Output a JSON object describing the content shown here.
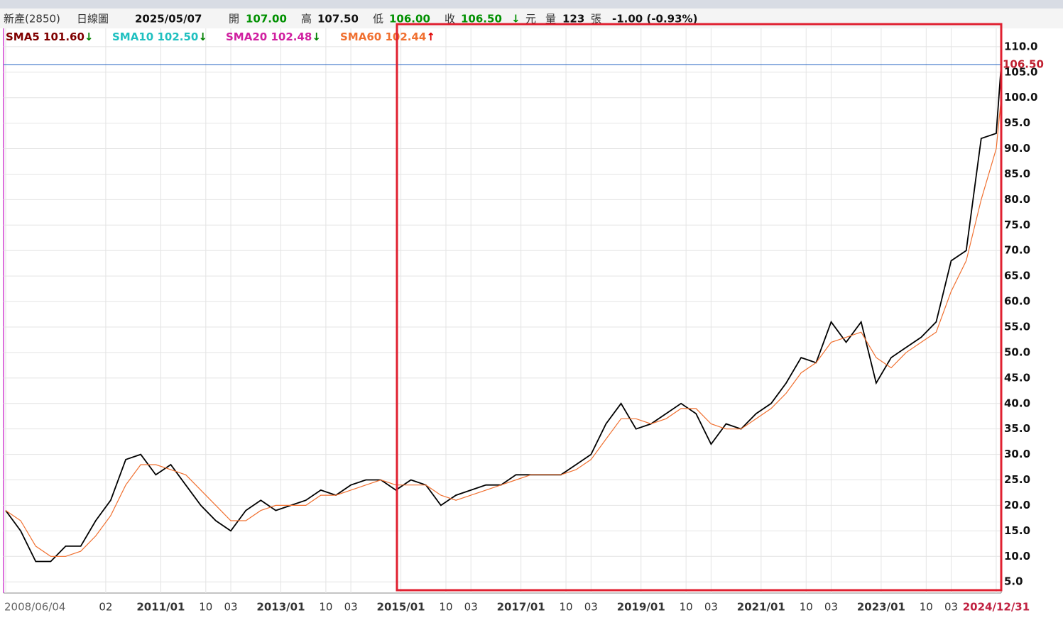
{
  "header": {
    "stock": "新產(2850)",
    "period": "日線圖",
    "date": "2025/05/07",
    "open_label": "開",
    "open": "107.00",
    "high_label": "高",
    "high": "107.50",
    "low_label": "低",
    "low": "106.00",
    "close_label": "收",
    "close": "106.50",
    "unit": "元",
    "volume_label": "量",
    "volume": "123",
    "volume_unit": "張",
    "change": "-1.00 (-0.93%)"
  },
  "indicators": [
    {
      "name": "SMA5",
      "value": "101.60",
      "color": "#800000",
      "arrow": "↓",
      "arrow_color": "#008000"
    },
    {
      "name": "SMA10",
      "value": "102.50",
      "color": "#20c0c0",
      "arrow": "↓",
      "arrow_color": "#008000"
    },
    {
      "name": "SMA20",
      "value": "102.48",
      "color": "#d020a0",
      "arrow": "↓",
      "arrow_color": "#008000"
    },
    {
      "name": "SMA60",
      "value": "102.44",
      "color": "#f07030",
      "arrow": "↑",
      "arrow_color": "#e00000"
    }
  ],
  "chart_data": {
    "type": "line",
    "x": [
      "2008/06",
      "2008/09",
      "2008/12",
      "2009/03",
      "2009/06",
      "2009/09",
      "2009/12",
      "2010/03",
      "2010/06",
      "2010/09",
      "2010/12",
      "2011/03",
      "2011/06",
      "2011/09",
      "2011/12",
      "2012/03",
      "2012/06",
      "2012/09",
      "2012/12",
      "2013/03",
      "2013/06",
      "2013/09",
      "2013/12",
      "2014/03",
      "2014/06",
      "2014/09",
      "2014/12",
      "2015/03",
      "2015/06",
      "2015/09",
      "2015/12",
      "2016/03",
      "2016/06",
      "2016/09",
      "2016/12",
      "2017/03",
      "2017/06",
      "2017/09",
      "2017/12",
      "2018/03",
      "2018/06",
      "2018/09",
      "2018/12",
      "2019/03",
      "2019/06",
      "2019/09",
      "2019/12",
      "2020/03",
      "2020/06",
      "2020/09",
      "2020/12",
      "2021/03",
      "2021/06",
      "2021/09",
      "2021/12",
      "2022/03",
      "2022/06",
      "2022/09",
      "2022/12",
      "2023/03",
      "2023/06",
      "2023/09",
      "2023/12",
      "2024/03",
      "2024/06",
      "2024/09",
      "2024/12",
      "2025/01"
    ],
    "series": [
      {
        "color": "#000000",
        "values": [
          19,
          15,
          9,
          9,
          12,
          12,
          17,
          21,
          29,
          30,
          26,
          28,
          24,
          20,
          17,
          15,
          19,
          21,
          19,
          20,
          21,
          23,
          22,
          24,
          25,
          25,
          23,
          25,
          24,
          20,
          22,
          23,
          24,
          24,
          26,
          26,
          26,
          26,
          28,
          30,
          36,
          40,
          35,
          36,
          38,
          40,
          38,
          32,
          36,
          35,
          38,
          40,
          44,
          49,
          48,
          56,
          52,
          56,
          44,
          49,
          51,
          53,
          56,
          68,
          70,
          92,
          93,
          106.5
        ]
      },
      {
        "color": "#f07030",
        "values": [
          19,
          17,
          12,
          10,
          10,
          11,
          14,
          18,
          24,
          28,
          28,
          27,
          26,
          23,
          20,
          17,
          17,
          19,
          20,
          20,
          20,
          22,
          22,
          23,
          24,
          25,
          24,
          24,
          24,
          22,
          21,
          22,
          23,
          24,
          25,
          26,
          26,
          26,
          27,
          29,
          33,
          37,
          37,
          36,
          37,
          39,
          39,
          36,
          35,
          35,
          37,
          39,
          42,
          46,
          48,
          52,
          53,
          54,
          49,
          47,
          50,
          52,
          54,
          62,
          68,
          80,
          90,
          100
        ]
      }
    ],
    "xlim": [
      "2008/06",
      "2025/01"
    ],
    "xticks": [
      {
        "value": "2008/06",
        "label": "2008/06/04"
      },
      {
        "value": "2010/02",
        "label": "02"
      },
      {
        "value": "2011/01",
        "label": "2011/01"
      },
      {
        "value": "2011/10",
        "label": "10"
      },
      {
        "value": "2012/03",
        "label": "03"
      },
      {
        "value": "2013/01",
        "label": "2013/01"
      },
      {
        "value": "2013/10",
        "label": "10"
      },
      {
        "value": "2014/03",
        "label": "03"
      },
      {
        "value": "2015/01",
        "label": "2015/01"
      },
      {
        "value": "2015/10",
        "label": "10"
      },
      {
        "value": "2016/03",
        "label": "03"
      },
      {
        "value": "2017/01",
        "label": "2017/01"
      },
      {
        "value": "2017/10",
        "label": "10"
      },
      {
        "value": "2018/03",
        "label": "03"
      },
      {
        "value": "2019/01",
        "label": "2019/01"
      },
      {
        "value": "2019/10",
        "label": "10"
      },
      {
        "value": "2020/03",
        "label": "03"
      },
      {
        "value": "2021/01",
        "label": "2021/01"
      },
      {
        "value": "2021/10",
        "label": "10"
      },
      {
        "value": "2022/03",
        "label": "03"
      },
      {
        "value": "2023/01",
        "label": "2023/01"
      },
      {
        "value": "2023/10",
        "label": "10"
      },
      {
        "value": "2024/03",
        "label": "03"
      },
      {
        "value": "2024/12",
        "label": "2024/12/31"
      }
    ],
    "ylim": [
      2.8,
      113.6
    ],
    "yticks": [
      {
        "value": 5,
        "label": "5.0"
      },
      {
        "value": 10,
        "label": "10.0"
      },
      {
        "value": 15,
        "label": "15.0"
      },
      {
        "value": 20,
        "label": "20.0"
      },
      {
        "value": 25,
        "label": "25.0"
      },
      {
        "value": 30,
        "label": "30.0"
      },
      {
        "value": 35,
        "label": "35.0"
      },
      {
        "value": 40,
        "label": "40.0"
      },
      {
        "value": 45,
        "label": "45.0"
      },
      {
        "value": 50,
        "label": "50.0"
      },
      {
        "value": 55,
        "label": "55.0"
      },
      {
        "value": 60,
        "label": "60.0"
      },
      {
        "value": 65,
        "label": "65.0"
      },
      {
        "value": 70,
        "label": "70.0"
      },
      {
        "value": 75,
        "label": "75.0"
      },
      {
        "value": 80,
        "label": "80.0"
      },
      {
        "value": 85,
        "label": "85.0"
      },
      {
        "value": 90,
        "label": "90.0"
      },
      {
        "value": 95,
        "label": "95.0"
      },
      {
        "value": 100,
        "label": "100.0"
      },
      {
        "value": 105,
        "label": "105.0"
      },
      {
        "value": 110,
        "label": "110.0"
      }
    ],
    "price_line": {
      "value": 106.5,
      "label": "106.50",
      "color": "#2060c0"
    },
    "grid": true
  }
}
